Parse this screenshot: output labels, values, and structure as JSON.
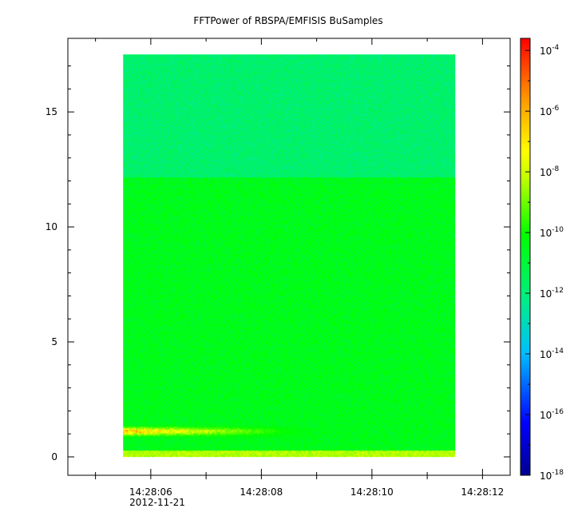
{
  "chart_data": {
    "type": "heatmap",
    "title": "FFTPower of RBSPA/EMFISIS  BuSamples",
    "xlabel": "",
    "ylabel": "",
    "x_ticks": [
      "14:28:06",
      "14:28:08",
      "14:28:10",
      "14:28:12"
    ],
    "x_date_label": "2012-11-21",
    "x_range_seconds": [
      4.5,
      12.5
    ],
    "data_x_range_seconds": [
      5.5,
      11.5
    ],
    "y_ticks": [
      0,
      5,
      10,
      15
    ],
    "ylim": [
      -0.8,
      18.2
    ],
    "data_y_range": [
      0,
      17.5
    ],
    "colorbar": {
      "scale": "log",
      "range": [
        -18,
        -3.6
      ],
      "ticks": [
        {
          "base": "10",
          "exp": "-4",
          "value": -4
        },
        {
          "base": "10",
          "exp": "-6",
          "value": -6
        },
        {
          "base": "10",
          "exp": "-8",
          "value": -8
        },
        {
          "base": "10",
          "exp": "-10",
          "value": -10
        },
        {
          "base": "10",
          "exp": "-12",
          "value": -12
        },
        {
          "base": "10",
          "exp": "-14",
          "value": -14
        },
        {
          "base": "10",
          "exp": "-16",
          "value": -16
        },
        {
          "base": "10",
          "exp": "-18",
          "value": -18
        }
      ]
    },
    "spectrogram_bands": [
      {
        "y_from": 12.2,
        "y_to": 17.5,
        "log_power": -11.8
      },
      {
        "y_from": 1.6,
        "y_to": 12.2,
        "log_power": -10.5
      },
      {
        "y_from": 0.0,
        "y_to": 0.3,
        "log_power": -8.3
      }
    ],
    "enhancement": {
      "y_from": 0.9,
      "y_to": 1.4,
      "x_from_seconds": 5.5,
      "x_to_seconds": 8.8,
      "log_power_peak": -5.5
    },
    "grid": false
  }
}
